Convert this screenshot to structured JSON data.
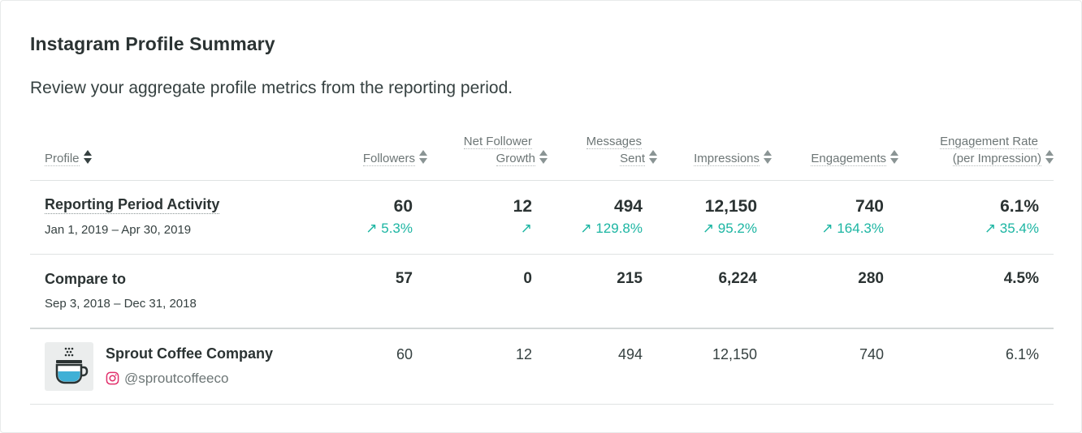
{
  "title": "Instagram Profile Summary",
  "subtitle": "Review your aggregate profile metrics from the reporting period.",
  "columns": {
    "profile": "Profile",
    "followers": "Followers",
    "net_line1": "Net Follower",
    "net_line2": "Growth",
    "msg_line1": "Messages",
    "msg_line2": "Sent",
    "impressions": "Impressions",
    "engagements": "Engagements",
    "rate_line1": "Engagement Rate",
    "rate_line2": "(per Impression)"
  },
  "reporting": {
    "label": "Reporting Period Activity",
    "dates": "Jan 1, 2019 – Apr 30, 2019",
    "followers": "60",
    "net_growth": "12",
    "messages": "494",
    "impressions": "12,150",
    "engagements": "740",
    "rate": "6.1%",
    "chg_followers": "↗ 5.3%",
    "chg_net": "↗",
    "chg_messages": "↗ 129.8%",
    "chg_impressions": "↗ 95.2%",
    "chg_engagements": "↗ 164.3%",
    "chg_rate": "↗ 35.4%"
  },
  "compare": {
    "label": "Compare to",
    "dates": "Sep 3, 2018 – Dec 31, 2018",
    "followers": "57",
    "net_growth": "0",
    "messages": "215",
    "impressions": "6,224",
    "engagements": "280",
    "rate": "4.5%"
  },
  "profiles": [
    {
      "name": "Sprout Coffee Company",
      "handle": "@sproutcoffeeco",
      "icon": "coffee-cup-icon",
      "followers": "60",
      "net_growth": "12",
      "messages": "494",
      "impressions": "12,150",
      "engagements": "740",
      "rate": "6.1%"
    }
  ],
  "colors": {
    "positive": "#1bb5a2",
    "instagram": "#e1306c",
    "cup_fill": "#3fb0d6"
  }
}
